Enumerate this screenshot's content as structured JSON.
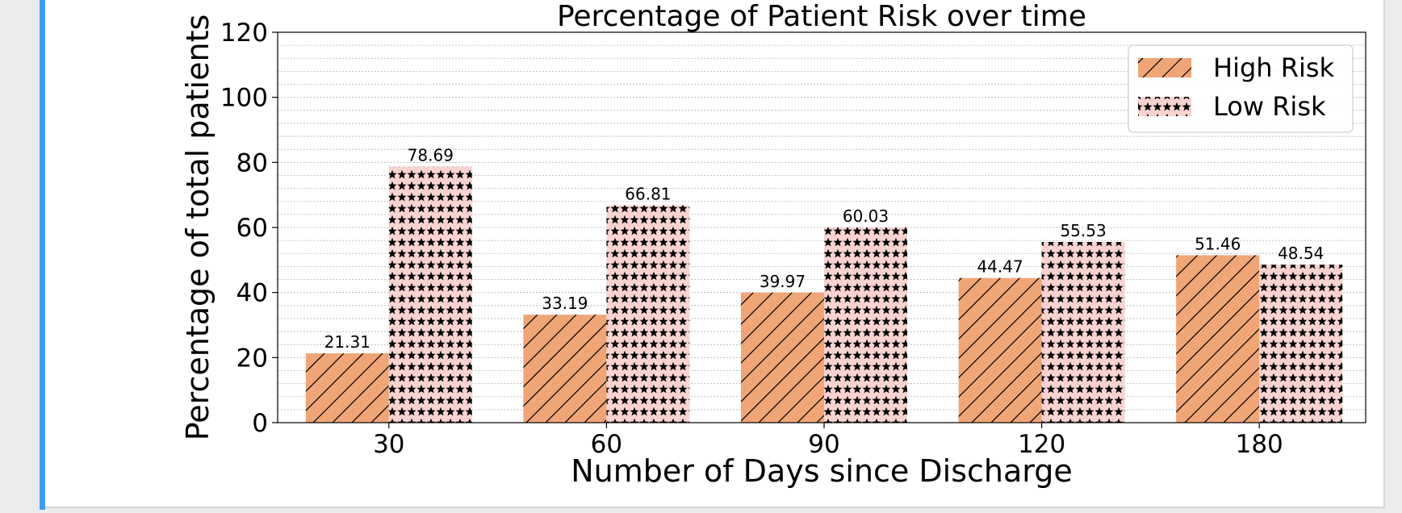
{
  "colors": {
    "accent": "#3d9cf2",
    "high_risk_fill": "#f0a576",
    "low_risk_fill": "#f8d3d0",
    "hatch": "#000000",
    "grid": "#b0b0b0",
    "axis": "#000000"
  },
  "chart_data": {
    "type": "bar",
    "title": "Percentage of Patient Risk over time",
    "xlabel": "Number of Days since Discharge",
    "ylabel": "Percentage of total patients",
    "categories": [
      "30",
      "60",
      "90",
      "120",
      "180"
    ],
    "series": [
      {
        "name": "High Risk",
        "values": [
          21.31,
          33.19,
          39.97,
          44.47,
          51.46
        ],
        "labels": [
          "21.31",
          "33.19",
          "39.97",
          "44.47",
          "51.46"
        ],
        "hatch": "diagonal-lines"
      },
      {
        "name": "Low Risk",
        "values": [
          78.69,
          66.81,
          60.03,
          55.53,
          48.54
        ],
        "labels": [
          "78.69",
          "66.81",
          "60.03",
          "55.53",
          "48.54"
        ],
        "hatch": "stars"
      }
    ],
    "ylim": [
      0,
      120
    ],
    "yticks": [
      0,
      20,
      40,
      60,
      80,
      100,
      120
    ],
    "ytick_labels": [
      "0",
      "20",
      "40",
      "60",
      "80",
      "100",
      "120"
    ],
    "minor_grid_step": 4,
    "grid": true,
    "legend_position": "top-right"
  }
}
